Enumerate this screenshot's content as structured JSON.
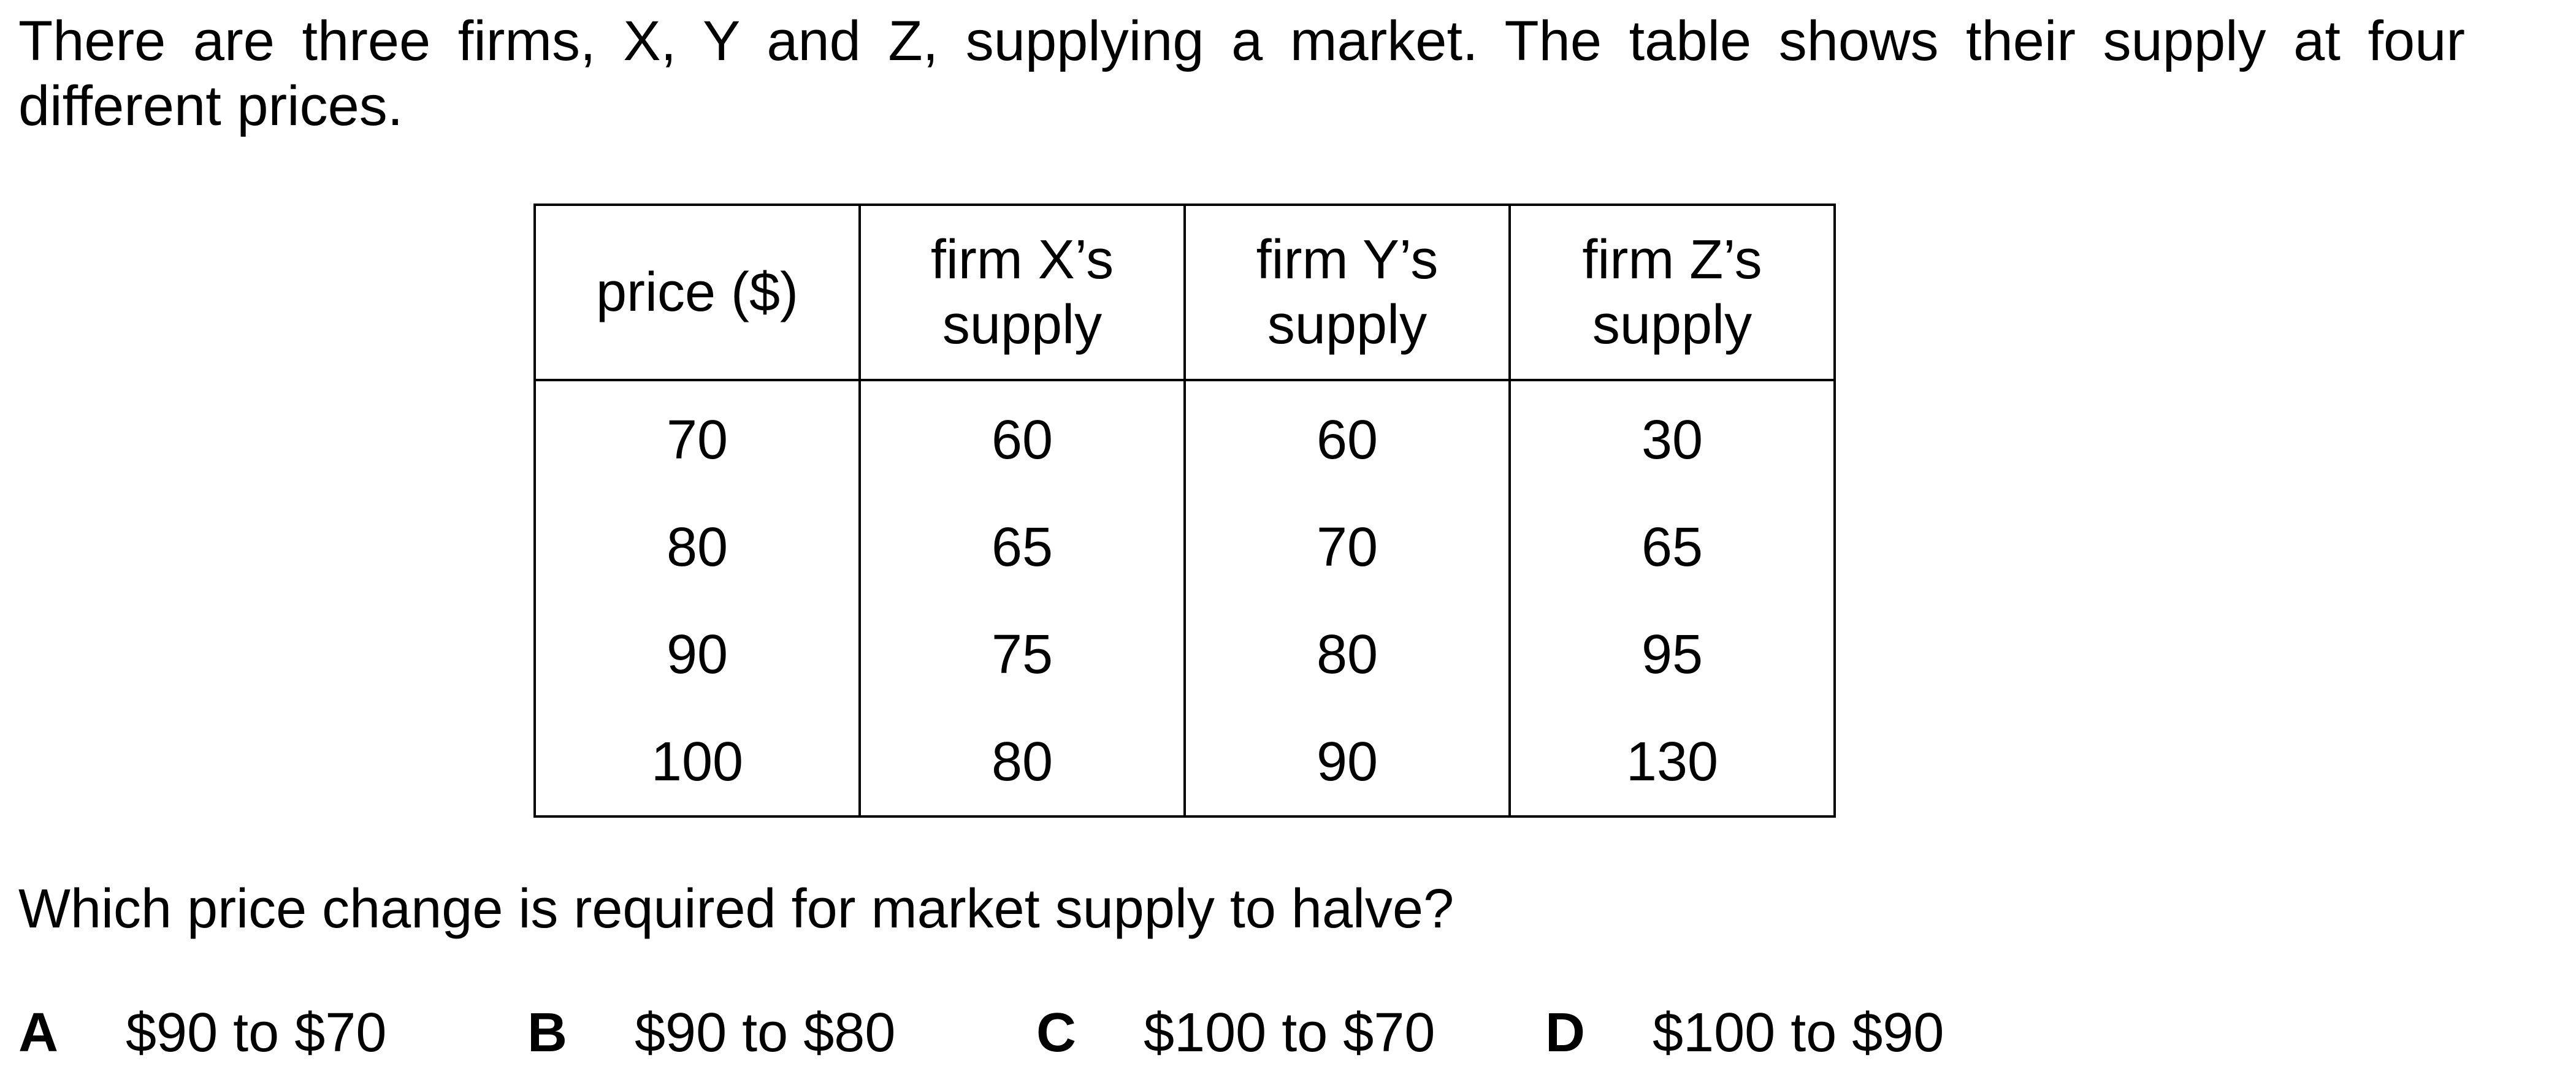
{
  "intro_text": "There are three firms, X, Y and Z, supplying a market. The table shows their supply at four different prices.",
  "table": {
    "headers": [
      [
        "price ($)"
      ],
      [
        "firm X’s",
        "supply"
      ],
      [
        "firm Y’s",
        "supply"
      ],
      [
        "firm Z’s",
        "supply"
      ]
    ],
    "rows": [
      [
        "70",
        "60",
        "60",
        "30"
      ],
      [
        "80",
        "65",
        "70",
        "65"
      ],
      [
        "90",
        "75",
        "80",
        "95"
      ],
      [
        "100",
        "80",
        "90",
        "130"
      ]
    ]
  },
  "question": "Which price change is required for market supply to halve?",
  "options": [
    {
      "letter": "A",
      "text": "$90 to $70"
    },
    {
      "letter": "B",
      "text": "$90 to $80"
    },
    {
      "letter": "C",
      "text": "$100 to $70"
    },
    {
      "letter": "D",
      "text": "$100 to $90"
    }
  ]
}
